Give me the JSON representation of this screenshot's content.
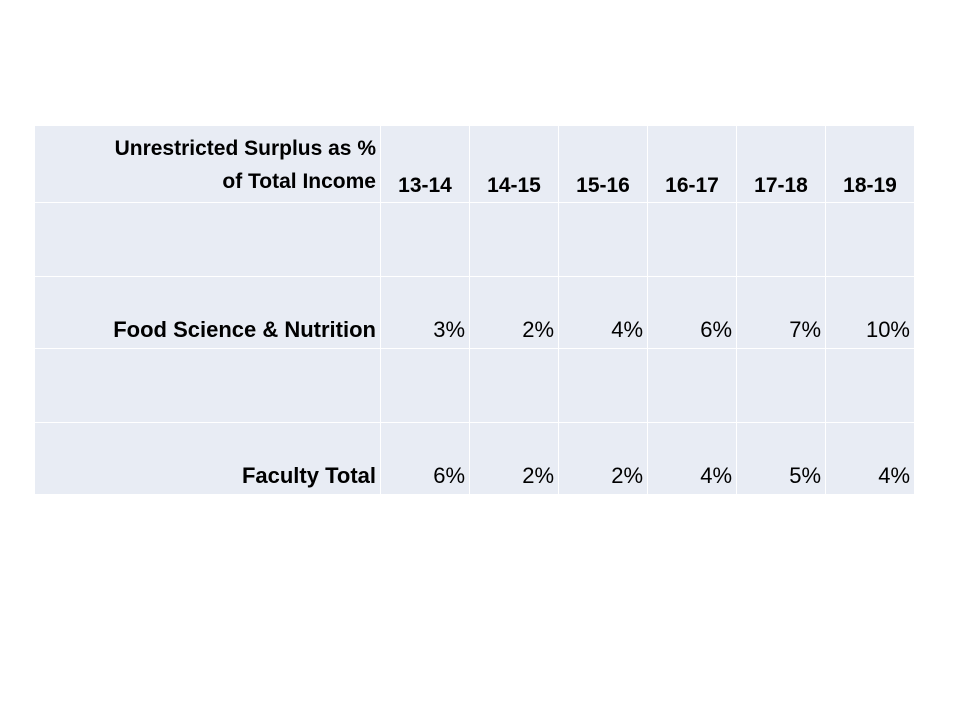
{
  "table": {
    "header_label_line1": "Unrestricted Surplus as %",
    "header_label_line2": "of Total Income",
    "years": [
      "13-14",
      "14-15",
      "15-16",
      "16-17",
      "17-18",
      "18-19"
    ],
    "rows": [
      {
        "label": "Food Science & Nutrition",
        "values": [
          "3%",
          "2%",
          "4%",
          "6%",
          "7%",
          "10%"
        ]
      },
      {
        "label": "Faculty Total",
        "values": [
          "6%",
          "2%",
          "2%",
          "4%",
          "5%",
          "4%"
        ]
      }
    ]
  },
  "colors": {
    "cell_background": "#e8ecf4",
    "page_background": "#ffffff",
    "text": "#000000"
  }
}
